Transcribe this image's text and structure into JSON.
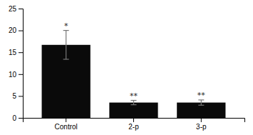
{
  "chart_data": {
    "type": "bar",
    "categories": [
      "Control",
      "2-p",
      "3-p"
    ],
    "values": [
      16.7,
      3.5,
      3.5
    ],
    "errors": [
      3.3,
      0.5,
      0.6
    ],
    "annotations": [
      "*",
      "**",
      "**"
    ],
    "color": "#0a0a0a",
    "ylim": [
      0,
      25
    ],
    "yticks": [
      0,
      5,
      10,
      15,
      20,
      25
    ],
    "grid": false
  }
}
